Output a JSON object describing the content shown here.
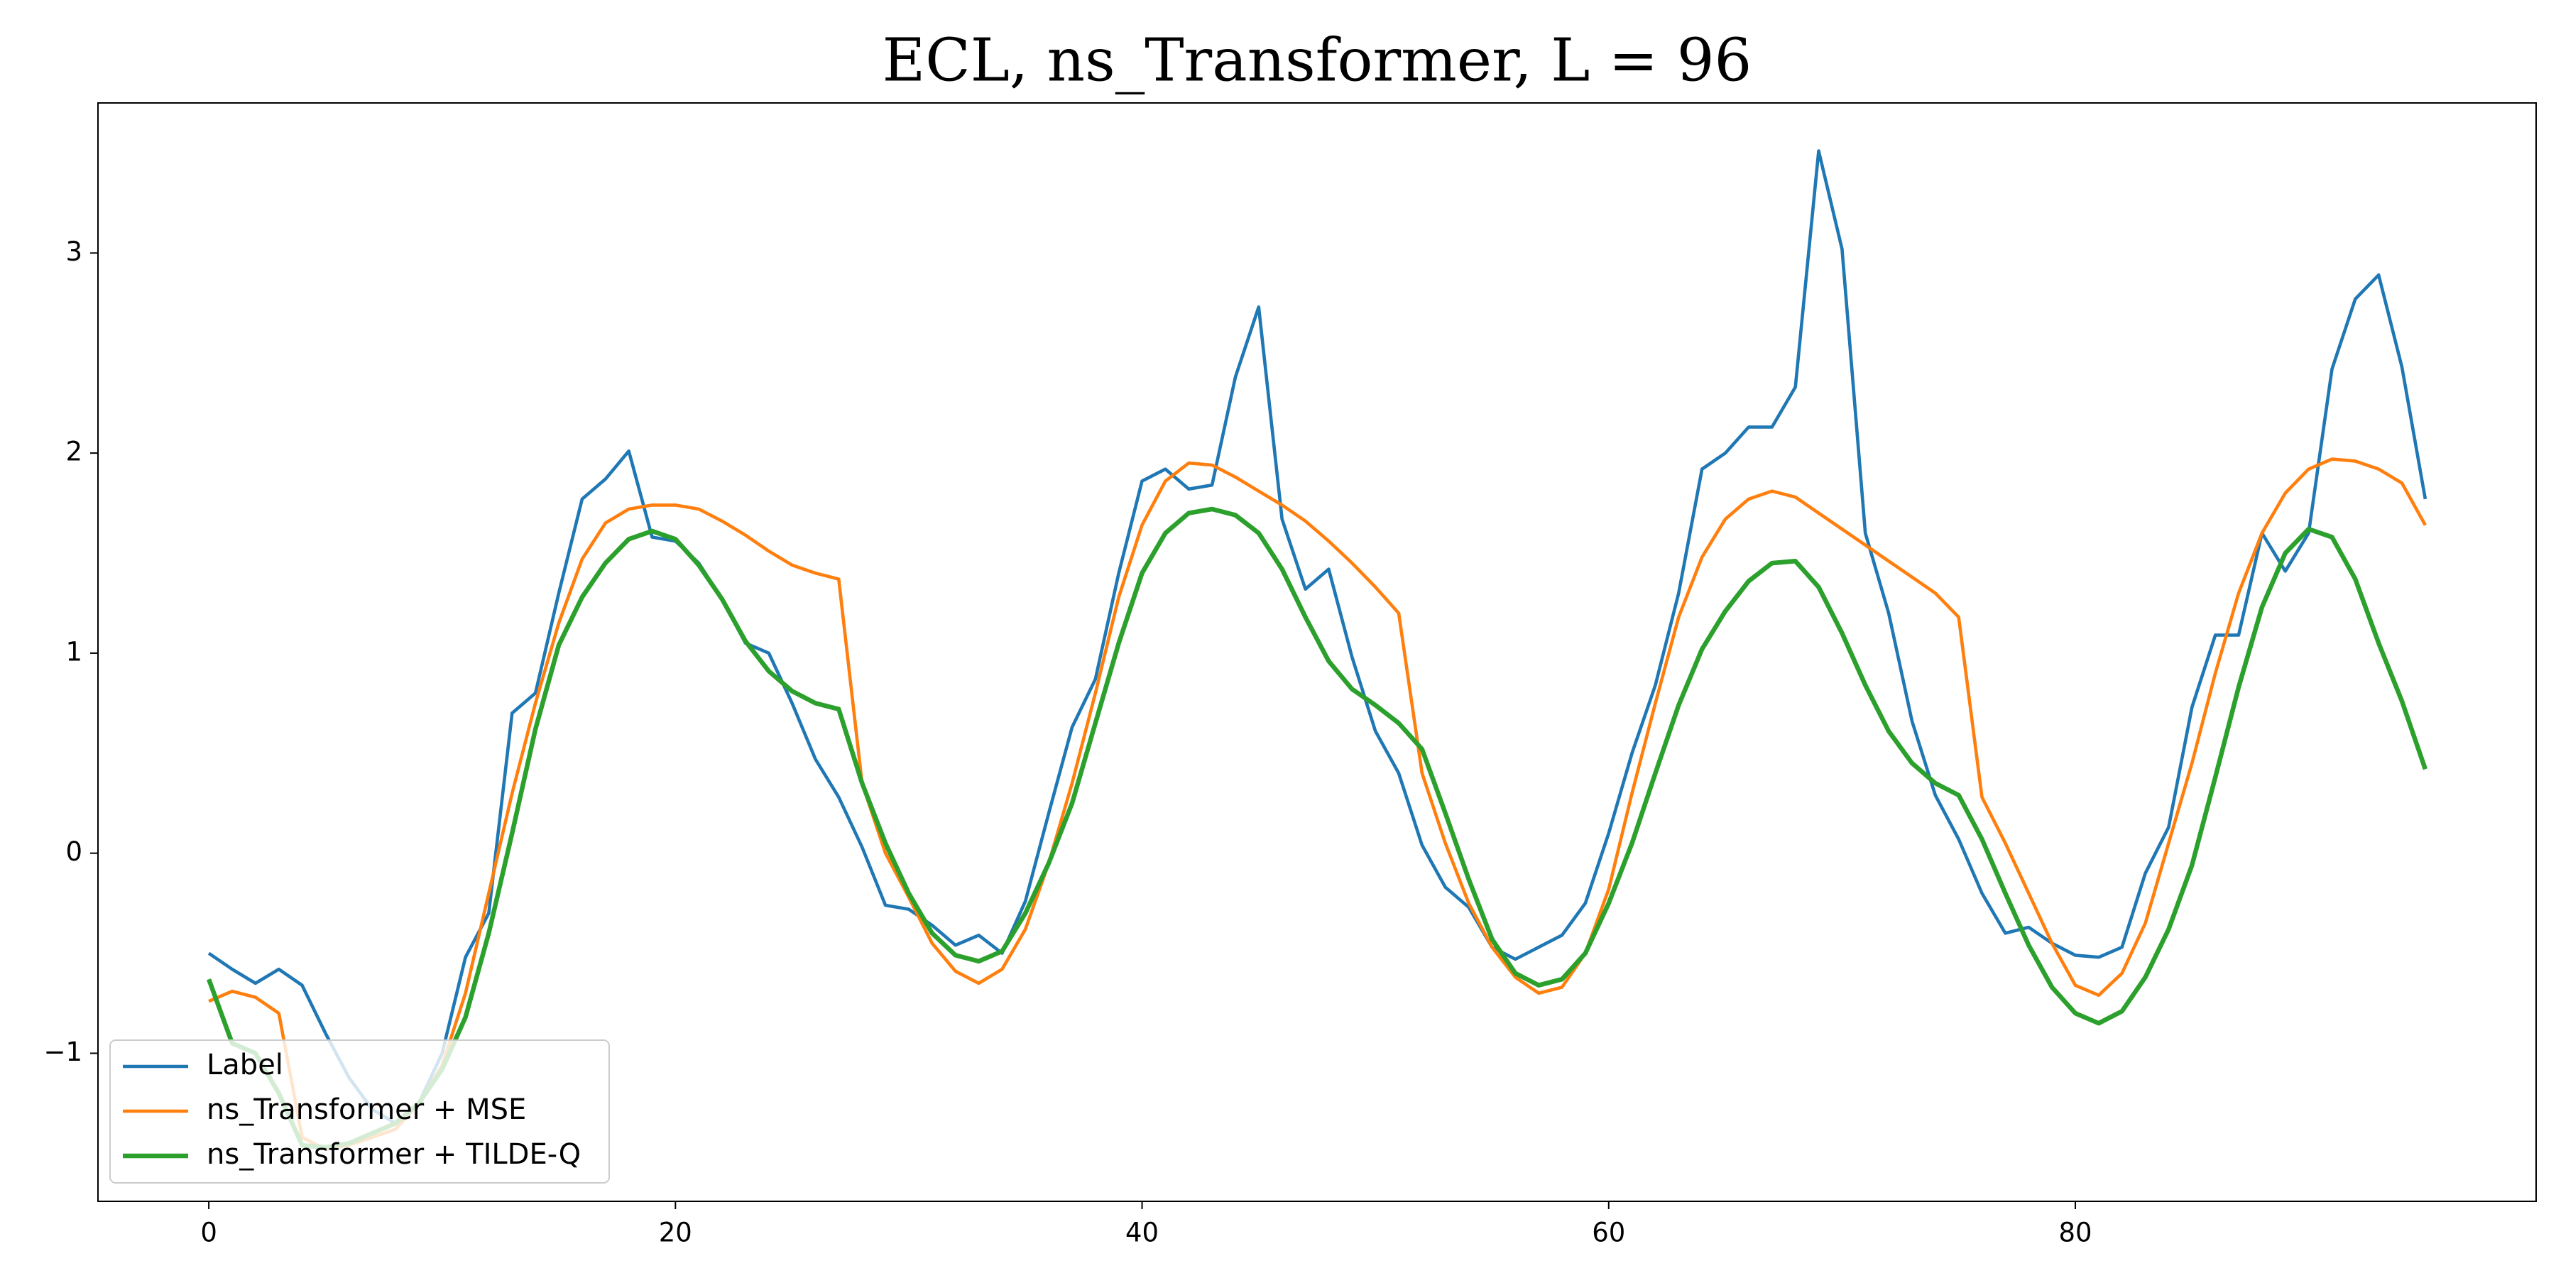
{
  "chart_data": {
    "type": "line",
    "title": "ECL, ns_Transformer, L = 96",
    "x": [
      0,
      1,
      2,
      3,
      4,
      5,
      6,
      7,
      8,
      9,
      10,
      11,
      12,
      13,
      14,
      15,
      16,
      17,
      18,
      19,
      20,
      21,
      22,
      23,
      24,
      25,
      26,
      27,
      28,
      29,
      30,
      31,
      32,
      33,
      34,
      35,
      36,
      37,
      38,
      39,
      40,
      41,
      42,
      43,
      44,
      45,
      46,
      47,
      48,
      49,
      50,
      51,
      52,
      53,
      54,
      55,
      56,
      57,
      58,
      59,
      60,
      61,
      62,
      63,
      64,
      65,
      66,
      67,
      68,
      69,
      70,
      71,
      72,
      73,
      74,
      75,
      76,
      77,
      78,
      79,
      80,
      81,
      82,
      83,
      84,
      85,
      86,
      87,
      88,
      89,
      90,
      91,
      92,
      93,
      94,
      95
    ],
    "series": [
      {
        "name": "Label",
        "color": "#1f77b4",
        "values": [
          -0.5,
          -0.58,
          -0.65,
          -0.58,
          -0.66,
          -0.9,
          -1.12,
          -1.28,
          -1.35,
          -1.25,
          -1.0,
          -0.52,
          -0.3,
          0.7,
          0.8,
          1.3,
          1.77,
          1.87,
          2.01,
          1.58,
          1.56,
          1.45,
          1.27,
          1.05,
          1.0,
          0.75,
          0.47,
          0.28,
          0.03,
          -0.26,
          -0.28,
          -0.36,
          -0.46,
          -0.41,
          -0.5,
          -0.24,
          0.2,
          0.63,
          0.87,
          1.4,
          1.86,
          1.92,
          1.82,
          1.84,
          2.38,
          2.73,
          1.67,
          1.32,
          1.42,
          0.98,
          0.61,
          0.4,
          0.04,
          -0.17,
          -0.27,
          -0.47,
          -0.53,
          -0.47,
          -0.41,
          -0.25,
          0.1,
          0.5,
          0.84,
          1.3,
          1.92,
          2.0,
          2.13,
          2.13,
          2.33,
          3.51,
          3.02,
          1.6,
          1.2,
          0.66,
          0.29,
          0.07,
          -0.2,
          -0.4,
          -0.37,
          -0.45,
          -0.51,
          -0.52,
          -0.47,
          -0.1,
          0.13,
          0.73,
          1.09,
          1.09,
          1.6,
          1.41,
          1.6,
          2.42,
          2.77,
          2.89,
          2.43,
          1.77
        ]
      },
      {
        "name": "ns_Transformer + MSE",
        "color": "#ff7f0e",
        "values": [
          -0.74,
          -0.69,
          -0.72,
          -0.8,
          -1.42,
          -1.48,
          -1.46,
          -1.42,
          -1.38,
          -1.25,
          -1.06,
          -0.7,
          -0.2,
          0.3,
          0.75,
          1.15,
          1.47,
          1.65,
          1.72,
          1.74,
          1.74,
          1.72,
          1.66,
          1.59,
          1.51,
          1.44,
          1.4,
          1.37,
          0.35,
          0.0,
          -0.22,
          -0.45,
          -0.59,
          -0.65,
          -0.58,
          -0.38,
          -0.05,
          0.35,
          0.8,
          1.28,
          1.64,
          1.86,
          1.95,
          1.94,
          1.88,
          1.81,
          1.74,
          1.66,
          1.56,
          1.45,
          1.33,
          1.2,
          0.4,
          0.05,
          -0.25,
          -0.47,
          -0.62,
          -0.7,
          -0.67,
          -0.5,
          -0.18,
          0.3,
          0.75,
          1.18,
          1.48,
          1.67,
          1.77,
          1.81,
          1.78,
          1.7,
          1.62,
          1.54,
          1.46,
          1.38,
          1.3,
          1.18,
          0.28,
          0.05,
          -0.2,
          -0.45,
          -0.66,
          -0.71,
          -0.6,
          -0.35,
          0.05,
          0.45,
          0.9,
          1.3,
          1.6,
          1.8,
          1.92,
          1.97,
          1.96,
          1.92,
          1.85,
          1.64
        ]
      },
      {
        "name": "ns_Transformer + TILDE-Q",
        "color": "#2ca02c",
        "values": [
          -0.63,
          -0.95,
          -1.0,
          -1.2,
          -1.46,
          -1.47,
          -1.45,
          -1.4,
          -1.35,
          -1.25,
          -1.08,
          -0.82,
          -0.4,
          0.1,
          0.62,
          1.04,
          1.28,
          1.45,
          1.57,
          1.61,
          1.57,
          1.44,
          1.27,
          1.06,
          0.91,
          0.81,
          0.75,
          0.72,
          0.35,
          0.05,
          -0.2,
          -0.4,
          -0.51,
          -0.54,
          -0.49,
          -0.3,
          -0.05,
          0.25,
          0.65,
          1.05,
          1.4,
          1.6,
          1.7,
          1.72,
          1.69,
          1.6,
          1.42,
          1.18,
          0.96,
          0.82,
          0.74,
          0.65,
          0.52,
          0.2,
          -0.13,
          -0.43,
          -0.6,
          -0.66,
          -0.63,
          -0.5,
          -0.25,
          0.05,
          0.4,
          0.74,
          1.02,
          1.21,
          1.36,
          1.45,
          1.46,
          1.33,
          1.1,
          0.84,
          0.61,
          0.45,
          0.35,
          0.29,
          0.07,
          -0.2,
          -0.46,
          -0.67,
          -0.8,
          -0.85,
          -0.79,
          -0.62,
          -0.38,
          -0.06,
          0.38,
          0.83,
          1.23,
          1.5,
          1.62,
          1.58,
          1.37,
          1.05,
          0.76,
          0.42
        ]
      }
    ],
    "xlim": [
      -4.75,
      99.75
    ],
    "xticks": [
      0,
      20,
      40,
      60,
      80
    ],
    "ylim": [
      -1.74,
      3.75
    ],
    "yticks": [
      {
        "value": -1,
        "label": "−1"
      },
      0,
      1,
      2,
      3
    ],
    "legend": "lower left",
    "grid": false
  }
}
